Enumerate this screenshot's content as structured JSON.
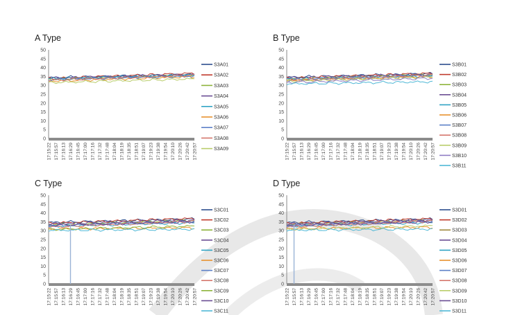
{
  "chart_data": [
    {
      "type": "line",
      "title": "A Type",
      "ylim": [
        0,
        50
      ],
      "yticks": [
        0,
        5,
        10,
        15,
        20,
        25,
        30,
        35,
        40,
        45,
        50
      ],
      "categories": [
        "17:15:22",
        "17:15:57",
        "17:16:13",
        "17:16:29",
        "17:16:45",
        "17:17:00",
        "17:17:16",
        "17:17:32",
        "17:17:48",
        "17:18:04",
        "17:18:19",
        "17:18:35",
        "17:18:51",
        "17:19:07",
        "17:19:23",
        "17:19:38",
        "17:19:54",
        "17:20:10",
        "17:20:26",
        "17:20:42",
        "17:20:57"
      ],
      "grid": false,
      "legend_position": "right",
      "series": [
        {
          "name": "S3A01",
          "color": "#2c4d8e",
          "start": 34.3,
          "end": 36.2
        },
        {
          "name": "S3A02",
          "color": "#c0392b",
          "start": 33.8,
          "end": 36.8
        },
        {
          "name": "S3A03",
          "color": "#8db33a",
          "start": 33.5,
          "end": 35.6
        },
        {
          "name": "S3A04",
          "color": "#6a4c93",
          "start": 34.0,
          "end": 36.0
        },
        {
          "name": "S3A05",
          "color": "#2fa3c4",
          "start": 33.6,
          "end": 35.8
        },
        {
          "name": "S3A06",
          "color": "#e8912d",
          "start": 32.3,
          "end": 34.9
        },
        {
          "name": "S3A07",
          "color": "#5b7fc7",
          "start": 33.2,
          "end": 35.2
        },
        {
          "name": "S3A08",
          "color": "#d5756b",
          "start": 32.8,
          "end": 35.6
        },
        {
          "name": "S3A09",
          "color": "#b9cd6a",
          "start": 31.5,
          "end": 33.6
        }
      ]
    },
    {
      "type": "line",
      "title": "B Type",
      "ylim": [
        0,
        50
      ],
      "yticks": [
        0,
        5,
        10,
        15,
        20,
        25,
        30,
        35,
        40,
        45,
        50
      ],
      "categories": [
        "17:15:22",
        "17:15:57",
        "17:16:13",
        "17:16:29",
        "17:16:45",
        "17:17:00",
        "17:17:16",
        "17:17:32",
        "17:17:48",
        "17:18:04",
        "17:18:19",
        "17:18:35",
        "17:18:51",
        "17:19:07",
        "17:19:23",
        "17:19:38",
        "17:19:54",
        "17:20:10",
        "17:20:26",
        "17:20:42",
        "17:20:57"
      ],
      "grid": false,
      "legend_position": "right",
      "series": [
        {
          "name": "S3B01",
          "color": "#2c4d8e",
          "start": 34.5,
          "end": 36.6
        },
        {
          "name": "S3B02",
          "color": "#c0392b",
          "start": 34.0,
          "end": 36.8
        },
        {
          "name": "S3B03",
          "color": "#8db33a",
          "start": 33.6,
          "end": 36.0
        },
        {
          "name": "S3B04",
          "color": "#6a4c93",
          "start": 34.2,
          "end": 36.2
        },
        {
          "name": "S3B05",
          "color": "#2fa3c4",
          "start": 33.4,
          "end": 35.4
        },
        {
          "name": "S3B06",
          "color": "#e8912d",
          "start": 32.8,
          "end": 35.0
        },
        {
          "name": "S3B07",
          "color": "#5b7fc7",
          "start": 33.0,
          "end": 35.5
        },
        {
          "name": "S3B08",
          "color": "#d5756b",
          "start": 32.6,
          "end": 35.8
        },
        {
          "name": "S3B09",
          "color": "#b9cd6a",
          "start": 32.2,
          "end": 34.6
        },
        {
          "name": "S3B10",
          "color": "#8e7cc3",
          "start": 31.6,
          "end": 34.0
        },
        {
          "name": "S3B11",
          "color": "#4fb8d6",
          "start": 30.8,
          "end": 32.0
        }
      ]
    },
    {
      "type": "line",
      "title": "C Type",
      "ylim": [
        0,
        50
      ],
      "yticks": [
        0,
        5,
        10,
        15,
        20,
        25,
        30,
        35,
        40,
        45,
        50
      ],
      "categories": [
        "17:15:22",
        "17:15:57",
        "17:16:13",
        "17:16:29",
        "17:16:45",
        "17:17:00",
        "17:17:16",
        "17:17:32",
        "17:17:48",
        "17:18:04",
        "17:18:19",
        "17:18:35",
        "17:18:51",
        "17:19:07",
        "17:19:23",
        "17:19:38",
        "17:19:54",
        "17:20:10",
        "17:20:26",
        "17:20:42",
        "17:20:57"
      ],
      "grid": false,
      "legend_position": "right",
      "series": [
        {
          "name": "S3C01",
          "color": "#2c4d8e",
          "start": 34.6,
          "end": 36.6
        },
        {
          "name": "S3C02",
          "color": "#c0392b",
          "start": 34.2,
          "end": 36.9
        },
        {
          "name": "S3C03",
          "color": "#8db33a",
          "start": 33.4,
          "end": 35.8
        },
        {
          "name": "S3C04",
          "color": "#6a4c93",
          "start": 33.8,
          "end": 36.0
        },
        {
          "name": "S3C05",
          "color": "#2fa3c4",
          "start": 32.5,
          "end": 34.5
        },
        {
          "name": "S3C06",
          "color": "#e8912d",
          "start": 31.0,
          "end": 31.6
        },
        {
          "name": "S3C07",
          "color": "#5b7fc7",
          "start": 32.8,
          "end": 35.2
        },
        {
          "name": "S3C08",
          "color": "#d5756b",
          "start": 32.0,
          "end": 35.3
        },
        {
          "name": "S3C09",
          "color": "#8db33a",
          "start": 30.6,
          "end": 32.6
        },
        {
          "name": "S3C10",
          "color": "#6a4c93",
          "start": 33.0,
          "end": 35.0
        },
        {
          "name": "S3C11",
          "color": "#4fb8d6",
          "start": 30.2,
          "end": 30.8
        }
      ],
      "spike": {
        "x": "17:16:29",
        "value": 0
      }
    },
    {
      "type": "line",
      "title": "D Type",
      "ylim": [
        0,
        50
      ],
      "yticks": [
        0,
        5,
        10,
        15,
        20,
        25,
        30,
        35,
        40,
        45,
        50
      ],
      "categories": [
        "17:15:22",
        "17:15:57",
        "17:16:13",
        "17:16:29",
        "17:16:45",
        "17:17:00",
        "17:17:16",
        "17:17:32",
        "17:17:48",
        "17:18:04",
        "17:18:19",
        "17:18:35",
        "17:18:51",
        "17:19:07",
        "17:19:23",
        "17:19:38",
        "17:19:54",
        "17:20:10",
        "17:20:26",
        "17:20:42",
        "17:20:57"
      ],
      "grid": false,
      "legend_position": "right",
      "series": [
        {
          "name": "S3D01",
          "color": "#2c4d8e",
          "start": 34.5,
          "end": 36.5
        },
        {
          "name": "S3D02",
          "color": "#c0392b",
          "start": 34.0,
          "end": 36.8
        },
        {
          "name": "S3D03",
          "color": "#a08a3e",
          "start": 33.6,
          "end": 35.9
        },
        {
          "name": "S3D04",
          "color": "#6a4c93",
          "start": 33.8,
          "end": 36.1
        },
        {
          "name": "S3D05",
          "color": "#2fa3c4",
          "start": 32.6,
          "end": 34.6
        },
        {
          "name": "S3D06",
          "color": "#e8912d",
          "start": 31.2,
          "end": 31.9
        },
        {
          "name": "S3D07",
          "color": "#5b7fc7",
          "start": 33.0,
          "end": 35.3
        },
        {
          "name": "S3D08",
          "color": "#d5756b",
          "start": 32.2,
          "end": 35.4
        },
        {
          "name": "S3D09",
          "color": "#b9cd6a",
          "start": 30.6,
          "end": 32.8
        },
        {
          "name": "S3D10",
          "color": "#6a4c93",
          "start": 32.9,
          "end": 35.0
        },
        {
          "name": "S3D11",
          "color": "#4fb8d6",
          "start": 30.3,
          "end": 30.9
        }
      ],
      "spike": {
        "x": "17:15:57",
        "value": 0
      }
    }
  ]
}
